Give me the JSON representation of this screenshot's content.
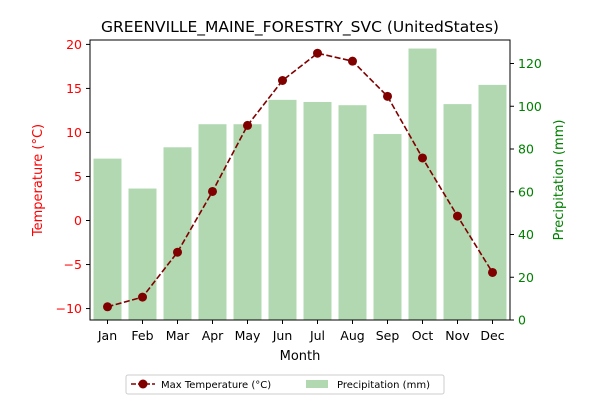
{
  "chart_data": {
    "type": "bar+line",
    "title": "GREENVILLE_MAINE_FORESTRY_SVC (UnitedStates)",
    "xlabel": "Month",
    "ylabel_left": "Temperature (°C)",
    "ylabel_right": "Precipitation (mm)",
    "categories": [
      "Jan",
      "Feb",
      "Mar",
      "Apr",
      "May",
      "Jun",
      "Jul",
      "Aug",
      "Sep",
      "Oct",
      "Nov",
      "Dec"
    ],
    "ylim_left": [
      -11.3,
      20.5
    ],
    "yticks_left": [
      -10,
      -5,
      0,
      5,
      10,
      15,
      20
    ],
    "ytick_labels_left": [
      "−10",
      "−5",
      "0",
      "5",
      "10",
      "15",
      "20"
    ],
    "ylim_right": [
      0,
      131
    ],
    "yticks_right": [
      0,
      20,
      40,
      60,
      80,
      100,
      120
    ],
    "ytick_labels_right": [
      "0",
      "20",
      "40",
      "60",
      "80",
      "100",
      "120"
    ],
    "series": [
      {
        "name": "Max Temperature (°C)",
        "type": "line",
        "axis": "left",
        "color": "#800000",
        "values": [
          -9.8,
          -8.7,
          -3.6,
          3.3,
          10.8,
          15.9,
          19.0,
          18.1,
          14.1,
          7.1,
          0.5,
          -5.9
        ]
      },
      {
        "name": "Precipitation (mm)",
        "type": "bar",
        "axis": "right",
        "color": "#b1d8b1",
        "values": [
          75.5,
          61.5,
          80.8,
          91.6,
          91.6,
          103,
          102,
          100.5,
          87,
          127,
          101,
          110
        ]
      }
    ],
    "colors": {
      "left_axis": "#ff0000",
      "right_axis": "#008000"
    },
    "grid": false,
    "legend_position": "bottom-center"
  }
}
